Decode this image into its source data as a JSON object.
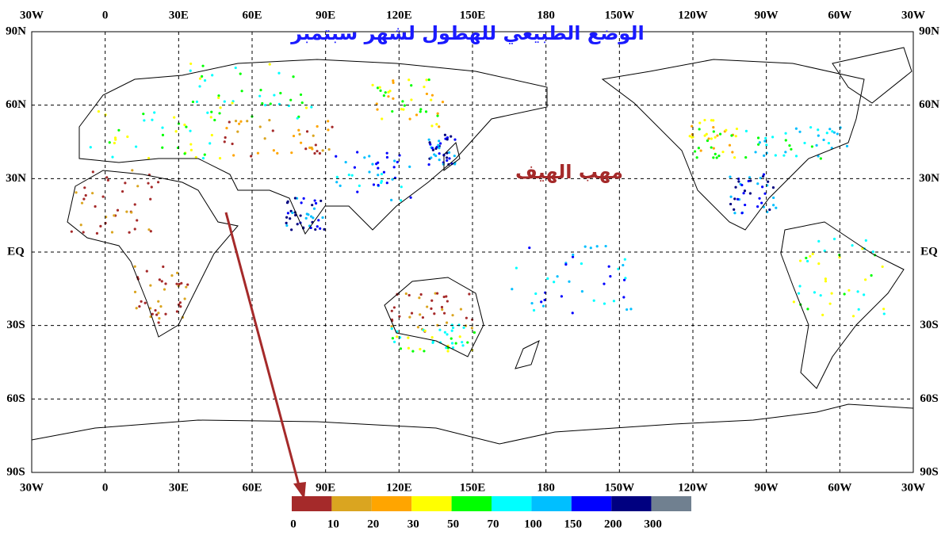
{
  "title": "الوضع الطبيعي للهطول لشهر سبتمبر",
  "annotation": "مهب الهيف",
  "lon_labels": [
    "30W",
    "0",
    "30E",
    "60E",
    "90E",
    "120E",
    "150E",
    "180",
    "150W",
    "120W",
    "90W",
    "60W",
    "30W"
  ],
  "lat_labels": [
    "90N",
    "60N",
    "30N",
    "EQ",
    "30S",
    "60S",
    "90S"
  ],
  "legend": {
    "colors": [
      "#a52a2a",
      "#daa520",
      "#ffa500",
      "#ffff00",
      "#00ff00",
      "#00ffff",
      "#00bfff",
      "#0000ff",
      "#000080",
      "#708090"
    ],
    "labels": [
      0,
      10,
      20,
      30,
      50,
      70,
      100,
      150,
      200,
      300
    ]
  }
}
